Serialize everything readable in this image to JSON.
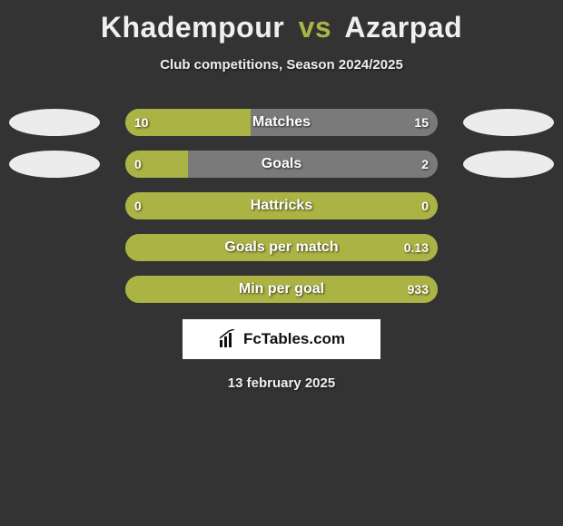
{
  "title": {
    "player1": "Khadempour",
    "vs": "vs",
    "player2": "Azarpad"
  },
  "subtitle": "Club competitions, Season 2024/2025",
  "colors": {
    "left_bar": "#aab343",
    "right_bar": "#7a7a7a",
    "track_default": "#7a7a7a",
    "badge": "#ececec",
    "text": "#ffffff",
    "background": "#333333"
  },
  "bar": {
    "track_width": 344,
    "height": 30,
    "radius": 15
  },
  "stats": [
    {
      "label": "Matches",
      "left_val": "10",
      "right_val": "15",
      "left_pct": 40,
      "right_pct": 60,
      "show_badges": true
    },
    {
      "label": "Goals",
      "left_val": "0",
      "right_val": "2",
      "left_pct": 20,
      "right_pct": 80,
      "show_badges": true
    },
    {
      "label": "Hattricks",
      "left_val": "0",
      "right_val": "0",
      "left_pct": 100,
      "right_pct": 0,
      "show_badges": false
    },
    {
      "label": "Goals per match",
      "left_val": "",
      "right_val": "0.13",
      "left_pct": 100,
      "right_pct": 0,
      "show_badges": false
    },
    {
      "label": "Min per goal",
      "left_val": "",
      "right_val": "933",
      "left_pct": 100,
      "right_pct": 0,
      "show_badges": false
    }
  ],
  "brand": "FcTables.com",
  "date": "13 february 2025"
}
